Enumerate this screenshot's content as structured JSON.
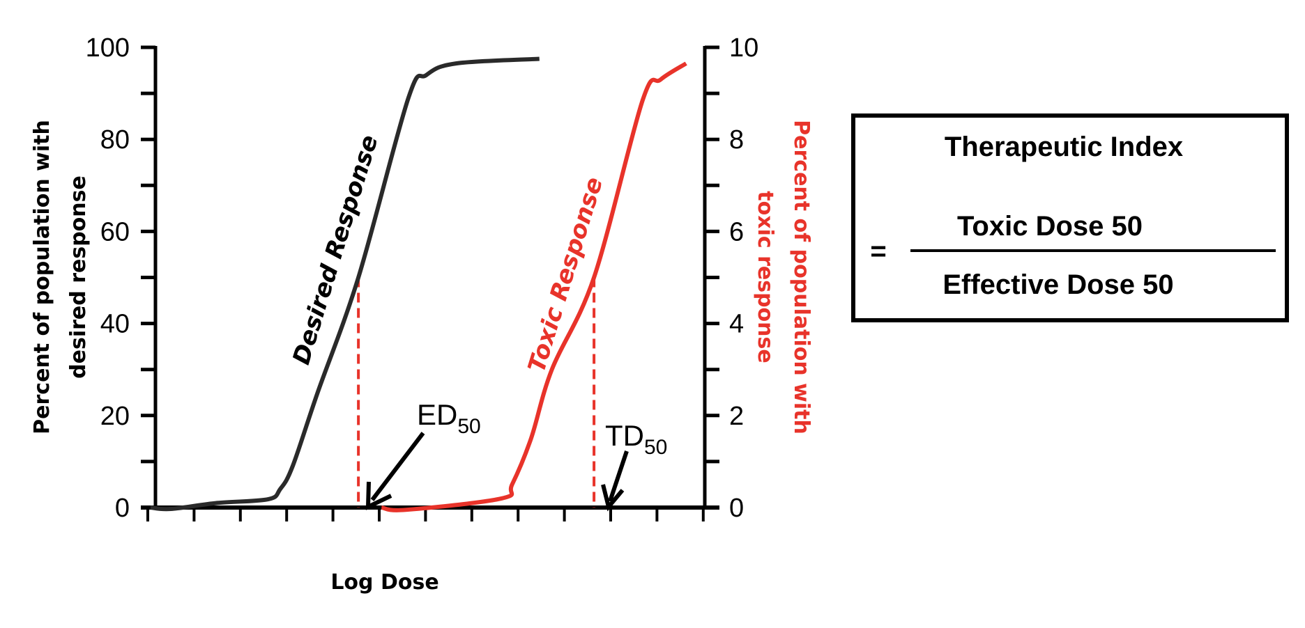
{
  "chart_data": {
    "type": "line",
    "title": "",
    "xlabel": "Log Dose",
    "ylabel_left": "Percent of population with desired response",
    "ylabel_left_lines": [
      "Percent of population with",
      "desired response"
    ],
    "ylabel_right": "Percent of population with toxic response",
    "ylabel_right_lines": [
      "Percent of population with",
      "toxic response"
    ],
    "x_ticks_count": 13,
    "x_tick_labels": [],
    "ylim_left": [
      0,
      100
    ],
    "yticks_left": [
      "0",
      "20",
      "40",
      "60",
      "80",
      "100"
    ],
    "ylim_right": [
      0,
      10
    ],
    "yticks_right": [
      "0",
      "2",
      "4",
      "6",
      "8",
      "10"
    ],
    "grid": false,
    "series": [
      {
        "name": "Desired Response",
        "axis": "left",
        "color": "#2a2a2a",
        "x": [
          0.06,
          0.5,
          1.5,
          2.6,
          2.86,
          3.13,
          3.67,
          4.55,
          5.63,
          6.02,
          6.66,
          8.46
        ],
        "y": [
          0,
          -0.3,
          1.0,
          1.8,
          4,
          9,
          25,
          50,
          89,
          94,
          96.5,
          97.5
        ]
      },
      {
        "name": "Toxic Response",
        "axis": "right",
        "color": "#e8332a",
        "x": [
          5.05,
          5.57,
          7.65,
          7.87,
          8.28,
          8.73,
          9.64,
          10.69,
          11.08,
          11.63
        ],
        "y": [
          0,
          -0.05,
          0.2,
          0.5,
          1.5,
          3,
          5,
          8.85,
          9.3,
          9.65
        ]
      }
    ],
    "annotations": [
      {
        "label": "ED",
        "subscript": "50",
        "x": 4.55,
        "y_left": 50,
        "line_color": "#e8332a"
      },
      {
        "label": "TD",
        "subscript": "50",
        "x": 9.64,
        "y_right": 5,
        "line_color": "#e8332a"
      }
    ]
  },
  "formula_box": {
    "title": "Therapeutic Index",
    "equals": "=",
    "numerator": "Toxic Dose 50",
    "denominator": "Effective Dose 50"
  }
}
